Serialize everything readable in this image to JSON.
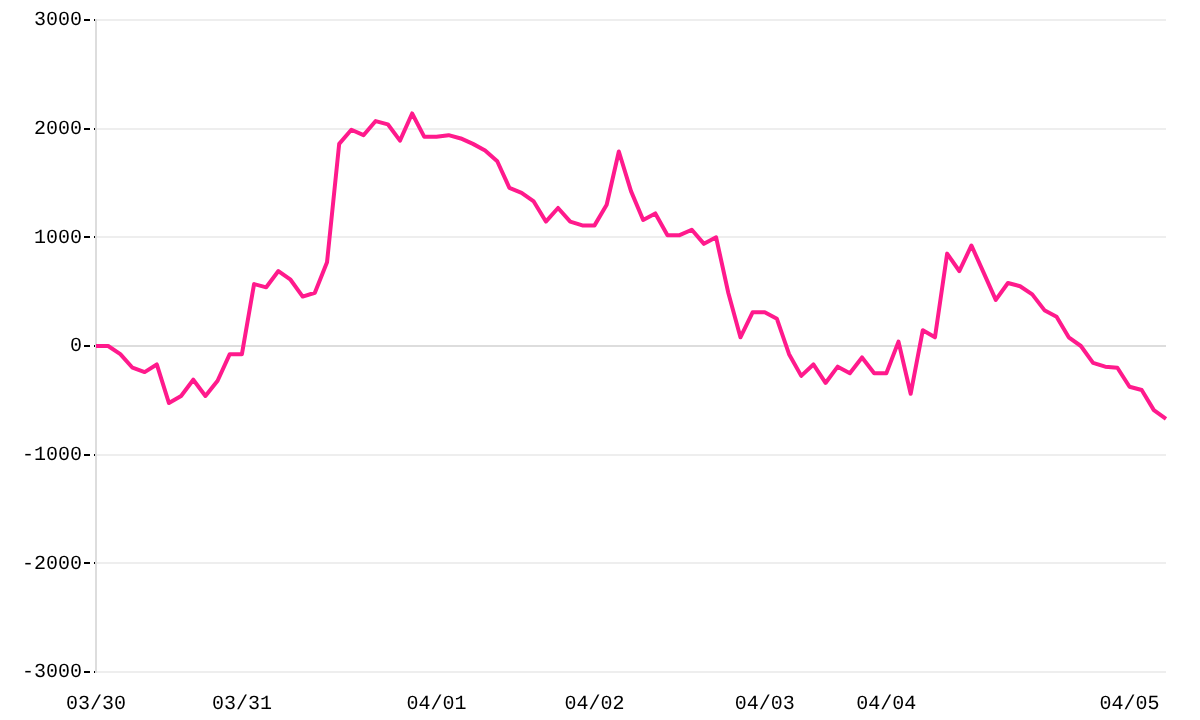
{
  "chart_data": {
    "type": "line",
    "categories": [
      "03/30",
      null,
      null,
      null,
      null,
      null,
      null,
      null,
      null,
      null,
      null,
      null,
      "03/31",
      null,
      null,
      null,
      null,
      null,
      null,
      null,
      null,
      null,
      null,
      null,
      null,
      null,
      null,
      null,
      "04/01",
      null,
      null,
      null,
      null,
      null,
      null,
      null,
      null,
      null,
      null,
      null,
      null,
      "04/02",
      null,
      null,
      null,
      null,
      null,
      null,
      null,
      null,
      null,
      null,
      null,
      null,
      null,
      "04/03",
      null,
      null,
      null,
      null,
      null,
      null,
      null,
      null,
      null,
      "04/04",
      null,
      null,
      null,
      null,
      null,
      null,
      null,
      null,
      null,
      null,
      null,
      null,
      null,
      null,
      null,
      null,
      null,
      null,
      null,
      "04/05",
      null,
      null,
      null
    ],
    "values": [
      0,
      0,
      -75,
      -200,
      -240,
      -170,
      -525,
      -460,
      -310,
      -460,
      -320,
      -75,
      -75,
      570,
      540,
      690,
      610,
      455,
      490,
      770,
      1860,
      1990,
      1940,
      2070,
      2040,
      1890,
      2140,
      1925,
      1925,
      1940,
      1910,
      1860,
      1800,
      1700,
      1455,
      1410,
      1330,
      1145,
      1270,
      1145,
      1110,
      1110,
      1300,
      1790,
      1425,
      1160,
      1220,
      1020,
      1020,
      1070,
      940,
      1000,
      490,
      80,
      310,
      310,
      250,
      -75,
      -275,
      -170,
      -340,
      -190,
      -250,
      -105,
      -250,
      -250,
      40,
      -440,
      145,
      80,
      850,
      690,
      925,
      675,
      425,
      580,
      550,
      475,
      330,
      270,
      80,
      0,
      -155,
      -190,
      -200,
      -375,
      -405,
      -590,
      -670
    ],
    "color": "#ff1a8c",
    "ylim": [
      -3000,
      3000
    ],
    "yticks": [
      -3000,
      -2000,
      -1000,
      0,
      1000,
      2000,
      3000
    ],
    "grid": "y",
    "marker": "none"
  }
}
